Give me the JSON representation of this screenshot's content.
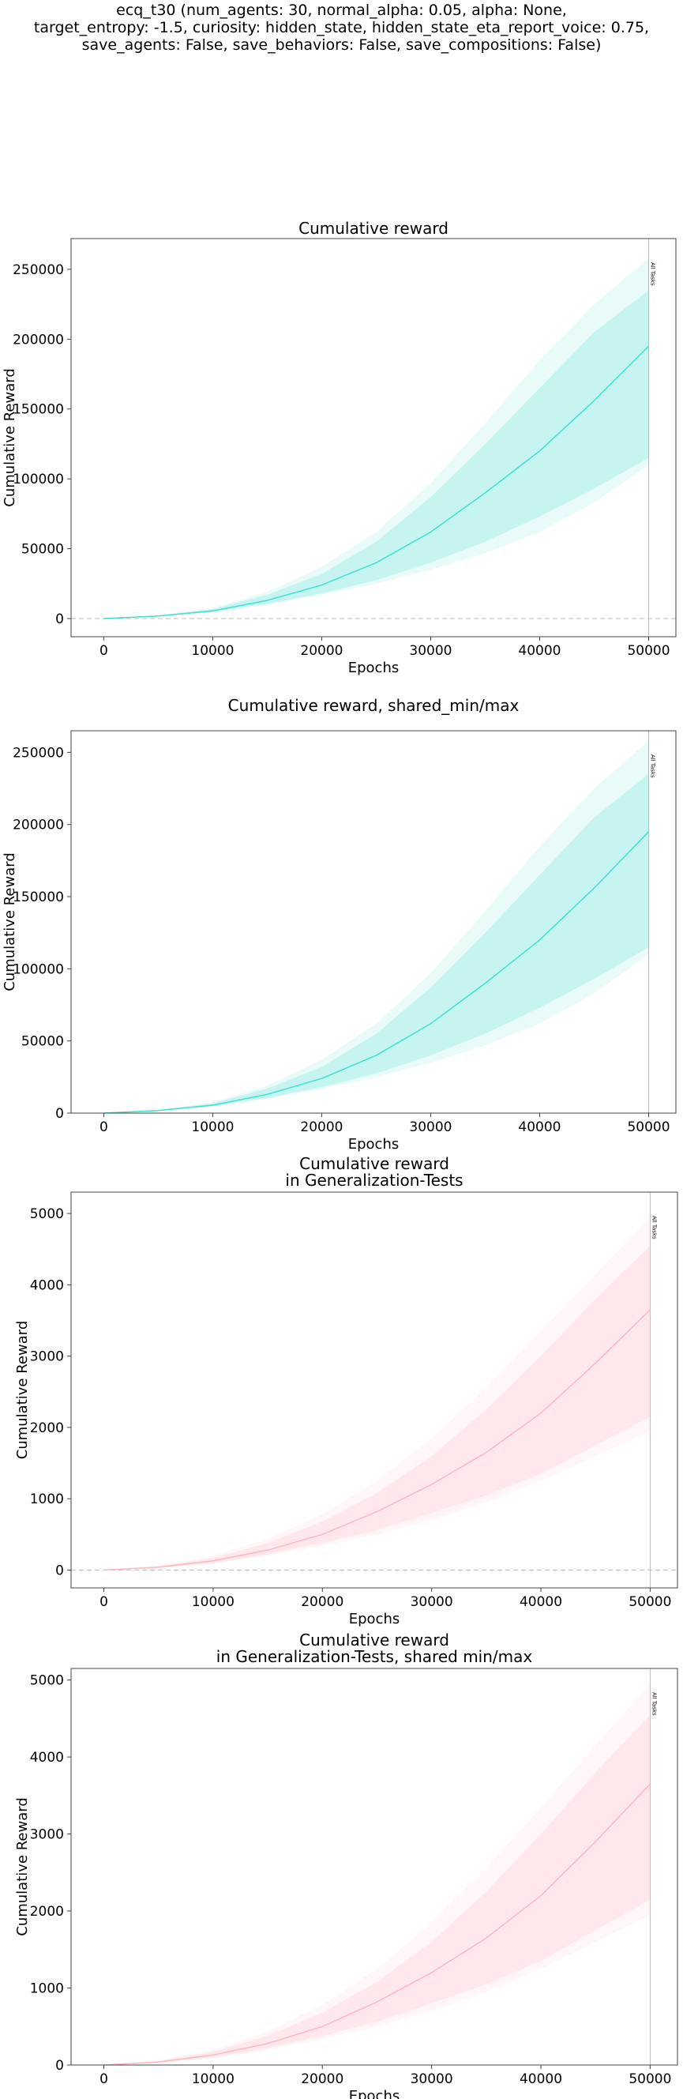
{
  "suptitle_lines": [
    "ecq_t30 (num_agents: 30, normal_alpha: 0.05, alpha: None,",
    "target_entropy: -1.5, curiosity: hidden_state, hidden_state_eta_report_voice: 0.75,",
    "save_agents: False, save_behaviors: False, save_compositions: False)"
  ],
  "chart_data": [
    {
      "type": "line",
      "title": [
        "Cumulative reward"
      ],
      "xlabel": "Epochs",
      "ylabel": "Cumulative Reward",
      "xlim": [
        -3000,
        52500
      ],
      "ylim": [
        -13000,
        272000
      ],
      "xticks": [
        0,
        10000,
        20000,
        30000,
        40000,
        50000
      ],
      "yticks": [
        0,
        50000,
        100000,
        150000,
        200000,
        250000
      ],
      "color": "#40e0d0",
      "zero_line": true,
      "vline": {
        "x": 50000,
        "label": "All Tasks"
      },
      "x": [
        0,
        5000,
        10000,
        15000,
        20000,
        25000,
        30000,
        35000,
        40000,
        45000,
        50000
      ],
      "mean": [
        0,
        1800,
        5500,
        13000,
        24000,
        40000,
        62000,
        90000,
        120000,
        156000,
        195000
      ],
      "inner_lower": [
        0,
        1600,
        4800,
        10500,
        18000,
        27500,
        40000,
        55000,
        73000,
        93000,
        115000
      ],
      "inner_upper": [
        0,
        2000,
        6800,
        17000,
        32000,
        55000,
        87000,
        125000,
        165000,
        205000,
        235000
      ],
      "outer_lower": [
        0,
        1500,
        4600,
        10000,
        17000,
        25000,
        35000,
        47000,
        62000,
        83000,
        110000
      ],
      "outer_upper": [
        0,
        2200,
        7500,
        19000,
        37000,
        62000,
        97000,
        140000,
        185000,
        225000,
        258000
      ]
    },
    {
      "type": "line",
      "title": [
        "Cumulative reward, shared_min/max"
      ],
      "xlabel": "Epochs",
      "ylabel": "Cumulative Reward",
      "xlim": [
        -3000,
        52500
      ],
      "ylim": [
        0,
        265000
      ],
      "xticks": [
        0,
        10000,
        20000,
        30000,
        40000,
        50000
      ],
      "yticks": [
        0,
        50000,
        100000,
        150000,
        200000,
        250000
      ],
      "color": "#40e0d0",
      "zero_line": false,
      "vline": {
        "x": 50000,
        "label": "All Tasks"
      },
      "x": [
        0,
        5000,
        10000,
        15000,
        20000,
        25000,
        30000,
        35000,
        40000,
        45000,
        50000
      ],
      "mean": [
        0,
        1800,
        5500,
        13000,
        24000,
        40000,
        62000,
        90000,
        120000,
        156000,
        195000
      ],
      "inner_lower": [
        0,
        1600,
        4800,
        10500,
        18000,
        27500,
        40000,
        55000,
        73000,
        93000,
        115000
      ],
      "inner_upper": [
        0,
        2000,
        6800,
        17000,
        32000,
        55000,
        87000,
        125000,
        165000,
        205000,
        235000
      ],
      "outer_lower": [
        0,
        1500,
        4600,
        10000,
        17000,
        25000,
        35000,
        47000,
        62000,
        83000,
        110000
      ],
      "outer_upper": [
        0,
        2200,
        7500,
        19000,
        37000,
        62000,
        97000,
        140000,
        185000,
        225000,
        258000
      ]
    },
    {
      "type": "line",
      "title": [
        "Cumulative reward",
        "in Generalization-Tests"
      ],
      "xlabel": "Epochs",
      "ylabel": "Cumulative Reward",
      "xlim": [
        -3000,
        52500
      ],
      "ylim": [
        -250,
        5300
      ],
      "xticks": [
        0,
        10000,
        20000,
        30000,
        40000,
        50000
      ],
      "yticks": [
        0,
        1000,
        2000,
        3000,
        4000,
        5000
      ],
      "color": "#ffb6c1",
      "zero_line": true,
      "vline": {
        "x": 50000,
        "label": "All Tasks"
      },
      "x": [
        0,
        5000,
        10000,
        15000,
        20000,
        25000,
        30000,
        35000,
        40000,
        45000,
        50000
      ],
      "mean": [
        0,
        40,
        130,
        280,
        500,
        820,
        1200,
        1650,
        2200,
        2900,
        3650
      ],
      "inner_lower": [
        0,
        30,
        100,
        220,
        380,
        560,
        800,
        1050,
        1350,
        1750,
        2150
      ],
      "inner_upper": [
        0,
        50,
        170,
        380,
        680,
        1080,
        1600,
        2250,
        3000,
        3800,
        4550
      ],
      "outer_lower": [
        0,
        25,
        90,
        200,
        340,
        500,
        700,
        950,
        1250,
        1600,
        1950
      ],
      "outer_upper": [
        0,
        60,
        200,
        440,
        780,
        1250,
        1850,
        2550,
        3350,
        4150,
        4950
      ]
    },
    {
      "type": "line",
      "title": [
        "Cumulative reward",
        "in Generalization-Tests, shared min/max"
      ],
      "xlabel": "Epochs",
      "ylabel": "Cumulative Reward",
      "xlim": [
        -3000,
        52500
      ],
      "ylim": [
        0,
        5150
      ],
      "xticks": [
        0,
        10000,
        20000,
        30000,
        40000,
        50000
      ],
      "yticks": [
        0,
        1000,
        2000,
        3000,
        4000,
        5000
      ],
      "color": "#ffb6c1",
      "zero_line": false,
      "vline": {
        "x": 50000,
        "label": "All Tasks"
      },
      "x": [
        0,
        5000,
        10000,
        15000,
        20000,
        25000,
        30000,
        35000,
        40000,
        45000,
        50000
      ],
      "mean": [
        0,
        40,
        130,
        280,
        500,
        820,
        1200,
        1650,
        2200,
        2900,
        3650
      ],
      "inner_lower": [
        0,
        30,
        100,
        220,
        380,
        560,
        800,
        1050,
        1350,
        1750,
        2150
      ],
      "inner_upper": [
        0,
        50,
        170,
        380,
        680,
        1080,
        1600,
        2250,
        3000,
        3800,
        4550
      ],
      "outer_lower": [
        0,
        25,
        90,
        200,
        340,
        500,
        700,
        950,
        1250,
        1600,
        1950
      ],
      "outer_upper": [
        0,
        60,
        200,
        440,
        780,
        1250,
        1850,
        2550,
        3350,
        4150,
        4950
      ]
    }
  ]
}
